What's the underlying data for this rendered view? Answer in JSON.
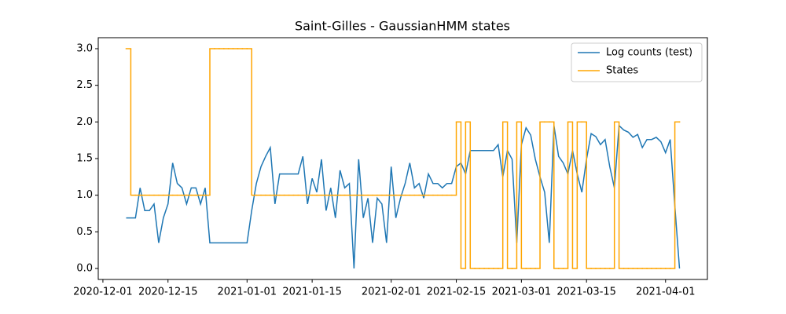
{
  "chart_data": {
    "type": "line",
    "title": "Saint-Gilles - GaussianHMM states",
    "x": [
      "2020-12-06",
      "2020-12-07",
      "2020-12-08",
      "2020-12-09",
      "2020-12-10",
      "2020-12-11",
      "2020-12-12",
      "2020-12-13",
      "2020-12-14",
      "2020-12-15",
      "2020-12-16",
      "2020-12-17",
      "2020-12-18",
      "2020-12-19",
      "2020-12-20",
      "2020-12-21",
      "2020-12-22",
      "2020-12-23",
      "2020-12-24",
      "2020-12-25",
      "2020-12-26",
      "2020-12-27",
      "2020-12-28",
      "2020-12-29",
      "2020-12-30",
      "2020-12-31",
      "2021-01-01",
      "2021-01-02",
      "2021-01-03",
      "2021-01-04",
      "2021-01-05",
      "2021-01-06",
      "2021-01-07",
      "2021-01-08",
      "2021-01-09",
      "2021-01-10",
      "2021-01-11",
      "2021-01-12",
      "2021-01-13",
      "2021-01-14",
      "2021-01-15",
      "2021-01-16",
      "2021-01-17",
      "2021-01-18",
      "2021-01-19",
      "2021-01-20",
      "2021-01-21",
      "2021-01-22",
      "2021-01-23",
      "2021-01-24",
      "2021-01-25",
      "2021-01-26",
      "2021-01-27",
      "2021-01-28",
      "2021-01-29",
      "2021-01-30",
      "2021-01-31",
      "2021-02-01",
      "2021-02-02",
      "2021-02-03",
      "2021-02-04",
      "2021-02-05",
      "2021-02-06",
      "2021-02-07",
      "2021-02-08",
      "2021-02-09",
      "2021-02-10",
      "2021-02-11",
      "2021-02-12",
      "2021-02-13",
      "2021-02-14",
      "2021-02-15",
      "2021-02-16",
      "2021-02-17",
      "2021-02-18",
      "2021-02-19",
      "2021-02-20",
      "2021-02-21",
      "2021-02-22",
      "2021-02-23",
      "2021-02-24",
      "2021-02-25",
      "2021-02-26",
      "2021-02-27",
      "2021-02-28",
      "2021-03-01",
      "2021-03-02",
      "2021-03-03",
      "2021-03-04",
      "2021-03-05",
      "2021-03-06",
      "2021-03-07",
      "2021-03-08",
      "2021-03-09",
      "2021-03-10",
      "2021-03-11",
      "2021-03-12",
      "2021-03-13",
      "2021-03-14",
      "2021-03-15",
      "2021-03-16",
      "2021-03-17",
      "2021-03-18",
      "2021-03-19",
      "2021-03-20",
      "2021-03-21",
      "2021-03-22",
      "2021-03-23",
      "2021-03-24",
      "2021-03-25",
      "2021-03-26",
      "2021-03-27",
      "2021-03-28",
      "2021-03-29",
      "2021-03-30",
      "2021-03-31",
      "2021-04-01",
      "2021-04-02",
      "2021-04-03",
      "2021-04-04"
    ],
    "series": [
      {
        "name": "Log counts (test)",
        "color": "#1f77b4",
        "values": [
          0.69,
          0.69,
          0.69,
          1.1,
          0.79,
          0.79,
          0.88,
          0.35,
          0.69,
          0.88,
          1.44,
          1.16,
          1.1,
          0.88,
          1.1,
          1.1,
          0.88,
          1.1,
          0.35,
          0.35,
          0.35,
          0.35,
          0.35,
          0.35,
          0.35,
          0.35,
          0.35,
          0.79,
          1.16,
          1.39,
          1.53,
          1.65,
          0.88,
          1.29,
          1.29,
          1.29,
          1.29,
          1.29,
          1.53,
          0.88,
          1.23,
          1.04,
          1.49,
          0.79,
          1.1,
          0.69,
          1.34,
          1.1,
          1.16,
          0,
          1.49,
          0.69,
          0.96,
          0.35,
          0.96,
          0.88,
          0.35,
          1.39,
          0.69,
          0.96,
          1.16,
          1.44,
          1.1,
          1.16,
          0.96,
          1.29,
          1.16,
          1.16,
          1.1,
          1.16,
          1.16,
          1.39,
          1.44,
          1.29,
          1.61,
          1.61,
          1.61,
          1.61,
          1.61,
          1.61,
          1.69,
          1.25,
          1.61,
          1.49,
          0.35,
          1.69,
          1.92,
          1.82,
          1.49,
          1.25,
          1.04,
          0.35,
          1.95,
          1.53,
          1.44,
          1.29,
          1.61,
          1.29,
          1.04,
          1.49,
          1.84,
          1.8,
          1.69,
          1.76,
          1.39,
          1.1,
          1.95,
          1.89,
          1.86,
          1.79,
          1.83,
          1.65,
          1.76,
          1.76,
          1.79,
          1.73,
          1.58,
          1.76,
          0.85,
          0
        ]
      },
      {
        "name": "States",
        "color": "#ffa500",
        "drawstyle": "steps-post",
        "values": [
          3,
          1,
          1,
          1,
          1,
          1,
          1,
          1,
          1,
          1,
          1,
          1,
          1,
          1,
          1,
          1,
          1,
          1,
          3,
          3,
          3,
          3,
          3,
          3,
          3,
          3,
          3,
          1,
          1,
          1,
          1,
          1,
          1,
          1,
          1,
          1,
          1,
          1,
          1,
          1,
          1,
          1,
          1,
          1,
          1,
          1,
          1,
          1,
          1,
          1,
          1,
          1,
          1,
          1,
          1,
          1,
          1,
          1,
          1,
          1,
          1,
          1,
          1,
          1,
          1,
          1,
          1,
          1,
          1,
          1,
          1,
          2,
          0,
          2,
          0,
          0,
          0,
          0,
          0,
          0,
          0,
          2,
          0,
          0,
          2,
          0,
          0,
          0,
          0,
          2,
          2,
          2,
          0,
          0,
          0,
          2,
          0,
          2,
          2,
          0,
          0,
          0,
          0,
          0,
          0,
          2,
          0,
          0,
          0,
          0,
          0,
          0,
          0,
          0,
          0,
          0,
          0,
          0,
          2,
          2
        ]
      }
    ],
    "xlim": [
      "2020-11-30",
      "2021-04-10"
    ],
    "xticks": [
      "2020-12-01",
      "2020-12-15",
      "2021-01-01",
      "2021-01-15",
      "2021-02-01",
      "2021-02-15",
      "2021-03-01",
      "2021-03-15",
      "2021-04-01"
    ],
    "ylim": [
      -0.15,
      3.15
    ],
    "yticks": [
      {
        "value": 0,
        "label": "0.0"
      },
      {
        "value": 0.5,
        "label": "0.5"
      },
      {
        "value": 1,
        "label": "1.0"
      },
      {
        "value": 1.5,
        "label": "1.5"
      },
      {
        "value": 2,
        "label": "2.0"
      },
      {
        "value": 2.5,
        "label": "2.5"
      },
      {
        "value": 3,
        "label": "3.0"
      }
    ],
    "legend": "upper right"
  }
}
